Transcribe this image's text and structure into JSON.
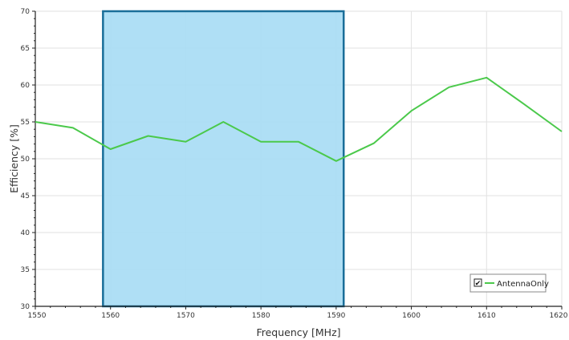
{
  "chart_data": {
    "type": "line",
    "title": "",
    "xlabel": "Frequency [MHz]",
    "ylabel": "Efficiency [%]",
    "xlim": [
      1550,
      1620
    ],
    "ylim": [
      30,
      70
    ],
    "x_ticks": [
      1550,
      1560,
      1570,
      1580,
      1590,
      1600,
      1610,
      1620
    ],
    "y_ticks": [
      30,
      35,
      40,
      45,
      50,
      55,
      60,
      65,
      70
    ],
    "grid": true,
    "legend_position": "bottom-right",
    "series": [
      {
        "name": "AntennaOnly",
        "color": "#4bc94b",
        "x": [
          1550,
          1555,
          1560,
          1565,
          1570,
          1575,
          1580,
          1585,
          1590,
          1595,
          1600,
          1605,
          1610,
          1615,
          1620
        ],
        "y": [
          55.0,
          54.2,
          51.3,
          53.1,
          52.3,
          55.0,
          52.3,
          52.3,
          49.7,
          52.1,
          56.5,
          59.7,
          61.0,
          57.4,
          53.7
        ]
      }
    ],
    "highlight_band": {
      "x_start": 1559,
      "x_end": 1591,
      "fill_color": "#a8dcf4",
      "border_color": "#1a6e99"
    },
    "legend": {
      "label": "AntennaOnly",
      "checked": true,
      "checkbox_glyph": "✔"
    }
  }
}
